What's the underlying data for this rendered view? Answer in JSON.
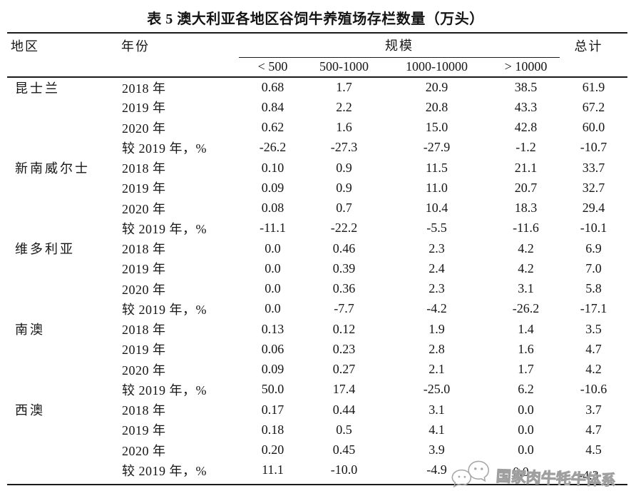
{
  "title": "表 5 澳大利亚各地区谷饲牛养殖场存栏数量（万头）",
  "table": {
    "headers": {
      "region": "地区",
      "year": "年份",
      "scale_group": "规模",
      "total": "总计",
      "scale_columns": [
        "< 500",
        "500-1000",
        "1000-10000",
        "> 10000"
      ]
    },
    "regions": [
      {
        "name": "昆士兰",
        "rows": [
          {
            "year": "2018 年",
            "values": [
              "0.68",
              "1.7",
              "20.9",
              "38.5",
              "61.9"
            ]
          },
          {
            "year": "2019 年",
            "values": [
              "0.84",
              "2.2",
              "20.8",
              "43.3",
              "67.2"
            ]
          },
          {
            "year": "2020 年",
            "values": [
              "0.62",
              "1.6",
              "15.0",
              "42.8",
              "60.0"
            ]
          },
          {
            "year": "较 2019 年，%",
            "values": [
              "-26.2",
              "-27.3",
              "-27.9",
              "-1.2",
              "-10.7"
            ]
          }
        ]
      },
      {
        "name": "新南威尔士",
        "rows": [
          {
            "year": "2018 年",
            "values": [
              "0.10",
              "0.9",
              "11.5",
              "21.1",
              "33.7"
            ]
          },
          {
            "year": "2019 年",
            "values": [
              "0.09",
              "0.9",
              "11.0",
              "20.7",
              "32.7"
            ]
          },
          {
            "year": "2020 年",
            "values": [
              "0.08",
              "0.7",
              "10.4",
              "18.3",
              "29.4"
            ]
          },
          {
            "year": "较 2019 年，%",
            "values": [
              "-11.1",
              "-22.2",
              "-5.5",
              "-11.6",
              "-10.1"
            ]
          }
        ]
      },
      {
        "name": "维多利亚",
        "rows": [
          {
            "year": "2018 年",
            "values": [
              "0.0",
              "0.46",
              "2.3",
              "4.2",
              "6.9"
            ]
          },
          {
            "year": "2019 年",
            "values": [
              "0.0",
              "0.39",
              "2.4",
              "4.2",
              "7.0"
            ]
          },
          {
            "year": "2020 年",
            "values": [
              "0.0",
              "0.36",
              "2.3",
              "3.1",
              "5.8"
            ]
          },
          {
            "year": "较 2019 年，%",
            "values": [
              "0.0",
              "-7.7",
              "-4.2",
              "-26.2",
              "-17.1"
            ]
          }
        ]
      },
      {
        "name": "南澳",
        "rows": [
          {
            "year": "2018 年",
            "values": [
              "0.13",
              "0.12",
              "1.9",
              "1.4",
              "3.5"
            ]
          },
          {
            "year": "2019 年",
            "values": [
              "0.06",
              "0.23",
              "2.8",
              "1.6",
              "4.7"
            ]
          },
          {
            "year": "2020 年",
            "values": [
              "0.09",
              "0.27",
              "2.1",
              "1.7",
              "4.2"
            ]
          },
          {
            "year": "较 2019 年，%",
            "values": [
              "50.0",
              "17.4",
              "-25.0",
              "6.2",
              "-10.6"
            ]
          }
        ]
      },
      {
        "name": "西澳",
        "rows": [
          {
            "year": "2018 年",
            "values": [
              "0.17",
              "0.44",
              "3.1",
              "0.0",
              "3.7"
            ]
          },
          {
            "year": "2019 年",
            "values": [
              "0.18",
              "0.5",
              "4.1",
              "0.0",
              "4.7"
            ]
          },
          {
            "year": "2020 年",
            "values": [
              "0.20",
              "0.45",
              "3.9",
              "0.0",
              "4.5"
            ]
          },
          {
            "year": "较 2019 年，%",
            "values": [
              "11.1",
              "-10.0",
              "-4.9",
              "0.0",
              "-4.3"
            ]
          }
        ]
      }
    ]
  },
  "watermark": {
    "text": "国家肉牛牦牛体系",
    "icon": "chat-bubbles-icon",
    "color": "#9f9f9f"
  }
}
